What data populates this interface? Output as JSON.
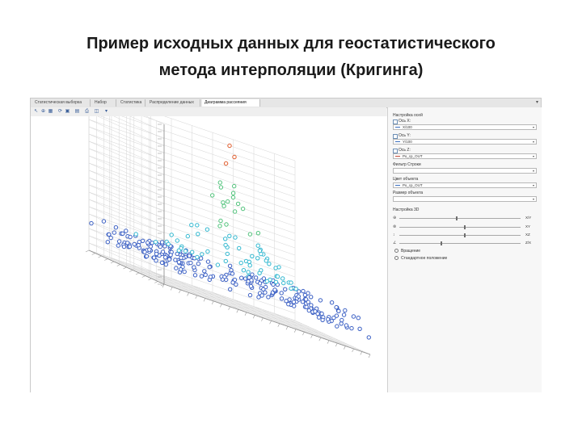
{
  "slide": {
    "title_line1": "Пример исходных данных для геостатистического",
    "title_line2": "метода интерполяции (Кригинга)"
  },
  "app": {
    "tabs": [
      {
        "label": "Статистическая выборка",
        "active": false
      },
      {
        "label": "Набор",
        "active": false
      },
      {
        "label": "Статистика",
        "active": false
      },
      {
        "label": "Распределение данных",
        "active": false
      },
      {
        "label": "Диаграмма рассеяния",
        "active": true
      }
    ],
    "toolbar_icons": [
      "cursor-icon",
      "zoom-icon",
      "table-icon",
      "rotate-icon",
      "save-icon",
      "chart-icon",
      "print-icon",
      "reset-icon",
      "settings-icon"
    ]
  },
  "panel": {
    "settings_title": "Настройка осей",
    "axis_x": {
      "label": "Ось X:",
      "value": "X/100"
    },
    "axis_y": {
      "label": "Ось Y:",
      "value": "Y/100"
    },
    "axis_z": {
      "label": "Ось Z:",
      "value": "Ро_ср_OUT"
    },
    "filter": {
      "label": "Фильтр Строки",
      "value": ""
    },
    "color": {
      "label": "Цвет объекта",
      "value": "Ро_ср_OUT"
    },
    "size": {
      "label": "Размер объекта",
      "value": ""
    },
    "view_title": "Настройка 3D",
    "sliders": [
      {
        "icon": "rotate-x-icon",
        "label": "X/Y",
        "position": 0.47
      },
      {
        "icon": "rotate-z-icon",
        "label": "XY",
        "position": 0.53
      },
      {
        "icon": "scale-icon",
        "label": "XZ",
        "position": 0.53
      },
      {
        "icon": "angle-icon",
        "label": "Z/X",
        "position": 0.34
      }
    ],
    "radio_rotate": "Вращение",
    "radio_standard": "Стандартное положение"
  },
  "chart_data": {
    "type": "scatter",
    "title": "",
    "xlabel": "",
    "ylabel": "",
    "zlabel": "",
    "dimensions": 3,
    "grid": true,
    "colormap": [
      "#3a5fc4",
      "#32b8d0",
      "#4fc27a",
      "#e05a2a"
    ],
    "description_shape": "points rising to a single peak near the center",
    "z_tick_labels": [
      "20000",
      "40000",
      "60000",
      "80000"
    ]
  }
}
